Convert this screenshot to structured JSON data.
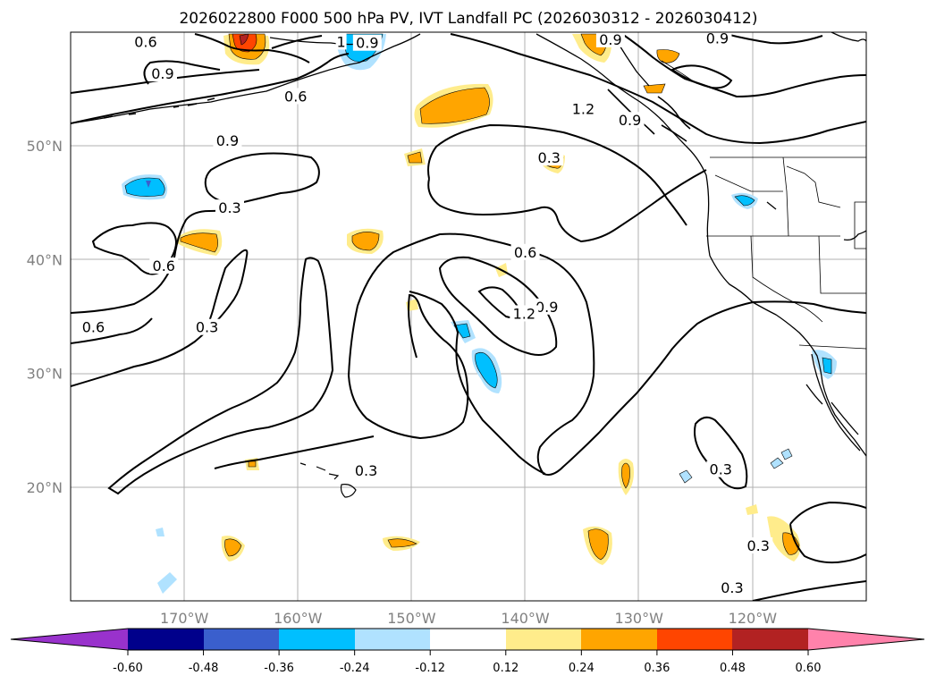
{
  "title": "2026022800 F000 500 hPa PV, IVT Landfall PC (2026030312 - 2026030412)",
  "map": {
    "lon_range": [
      -180,
      -110
    ],
    "lat_range": [
      10,
      60
    ],
    "lon_ticks": [
      {
        "lon": -170,
        "label": "170°W"
      },
      {
        "lon": -160,
        "label": "160°W"
      },
      {
        "lon": -150,
        "label": "150°W"
      },
      {
        "lon": -140,
        "label": "140°W"
      },
      {
        "lon": -130,
        "label": "130°W"
      },
      {
        "lon": -120,
        "label": "120°W"
      }
    ],
    "lat_ticks": [
      {
        "lat": 50,
        "label": "50°N"
      },
      {
        "lat": 40,
        "label": "40°N"
      },
      {
        "lat": 30,
        "label": "30°N"
      },
      {
        "lat": 20,
        "label": "20°N"
      }
    ],
    "contour_labels": [
      {
        "text": "0.6",
        "lon": -173.4,
        "lat": 59.1
      },
      {
        "text": "0.9",
        "lon": -171.9,
        "lat": 56.3
      },
      {
        "text": "0.6",
        "lon": -160.2,
        "lat": 54.3
      },
      {
        "text": "0.9",
        "lon": -166.2,
        "lat": 50.4
      },
      {
        "text": "0.3",
        "lon": -166.0,
        "lat": 44.5
      },
      {
        "text": "0.6",
        "lon": -171.8,
        "lat": 39.4
      },
      {
        "text": "0.6",
        "lon": -178.0,
        "lat": 34.0
      },
      {
        "text": "0.3",
        "lon": -168.0,
        "lat": 34.0
      },
      {
        "text": "0.6",
        "lon": -140.0,
        "lat": 40.6
      },
      {
        "text": "0.9",
        "lon": -138.1,
        "lat": 35.8
      },
      {
        "text": "1.2",
        "lon": -140.1,
        "lat": 35.2
      },
      {
        "text": "0.3",
        "lon": -137.9,
        "lat": 48.9
      },
      {
        "text": "0.3",
        "lon": -154.0,
        "lat": 21.4
      },
      {
        "text": "0.9",
        "lon": -132.5,
        "lat": 59.3
      },
      {
        "text": "0.9",
        "lon": -123.1,
        "lat": 59.4
      },
      {
        "text": "1.2",
        "lon": -134.9,
        "lat": 53.2
      },
      {
        "text": "0.9",
        "lon": -130.8,
        "lat": 52.2
      },
      {
        "text": "0.3",
        "lon": -122.8,
        "lat": 21.5
      },
      {
        "text": "0.3",
        "lon": -119.5,
        "lat": 14.8
      },
      {
        "text": "0.3",
        "lon": -121.8,
        "lat": 11.1
      },
      {
        "text": "1",
        "lon": -156.2,
        "lat": 59.1
      },
      {
        "text": "0.9",
        "lon": -153.9,
        "lat": 59.0
      }
    ]
  },
  "colorbar": {
    "levels": [
      "-0.60",
      "-0.48",
      "-0.36",
      "-0.24",
      "-0.12",
      "0.12",
      "0.24",
      "0.36",
      "0.48",
      "0.60"
    ],
    "colors": {
      "lt_n060": "#9932CC",
      "n060_n048": "#00008B",
      "n048_n036": "#3A5FCD",
      "n036_n024": "#00BFFF",
      "n024_n012": "#B0E2FF",
      "n012_012": "#FFFFFF",
      "p012_p024": "#FFEC8B",
      "p024_p036": "#FFA500",
      "p036_p048": "#FF4500",
      "p048_p060": "#B22222",
      "gt_p060": "#FF82AB"
    }
  }
}
